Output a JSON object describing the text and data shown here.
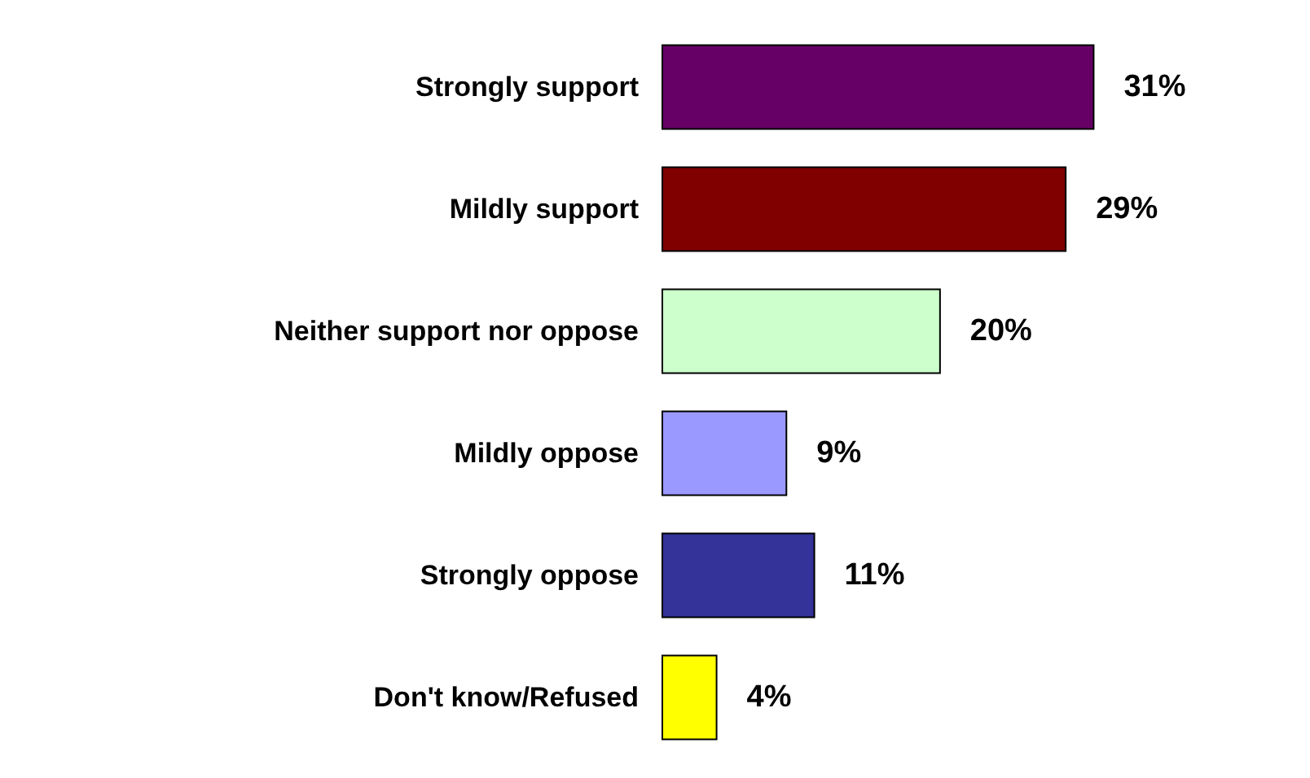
{
  "chart_data": {
    "type": "bar",
    "orientation": "horizontal",
    "categories": [
      "Strongly support",
      "Mildly support",
      "Neither support nor oppose",
      "Mildly oppose",
      "Strongly oppose",
      "Don't know/Refused"
    ],
    "values": [
      31,
      29,
      20,
      9,
      11,
      4
    ],
    "colors": [
      "#660066",
      "#800000",
      "#ccffcc",
      "#9999ff",
      "#333399",
      "#ffff00"
    ],
    "value_labels": [
      "31%",
      "29%",
      "20%",
      "9%",
      "11%",
      "4%"
    ]
  }
}
